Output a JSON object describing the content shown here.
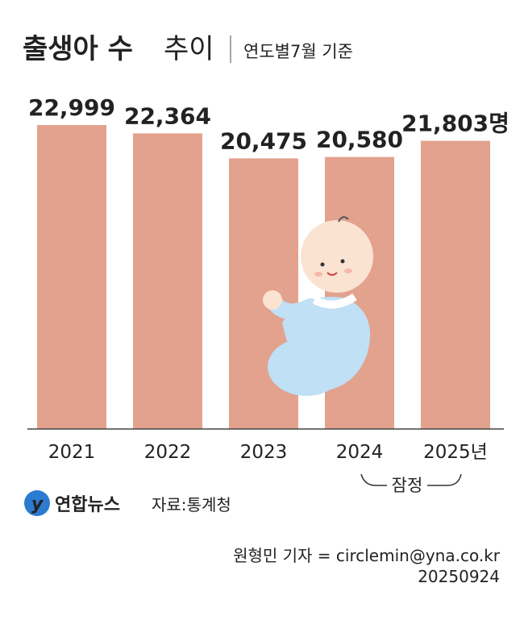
{
  "chart_data": {
    "type": "bar",
    "title": "출생아 수",
    "title_light": "추이",
    "subtitle": "연도별7월 기준",
    "categories": [
      "2021",
      "2022",
      "2023",
      "2024",
      "2025년"
    ],
    "values": [
      22999,
      22364,
      20475,
      20580,
      21803
    ],
    "value_labels": [
      "22,999",
      "22,364",
      "20,475",
      "20,580",
      "21,803명"
    ],
    "color": "#e3a28e",
    "annotation": "잠정"
  },
  "footer": {
    "logo": "연합뉴스",
    "source": "자료:통계청",
    "byline": "원형민 기자 = circlemin@yna.co.kr",
    "date": "20250924"
  }
}
